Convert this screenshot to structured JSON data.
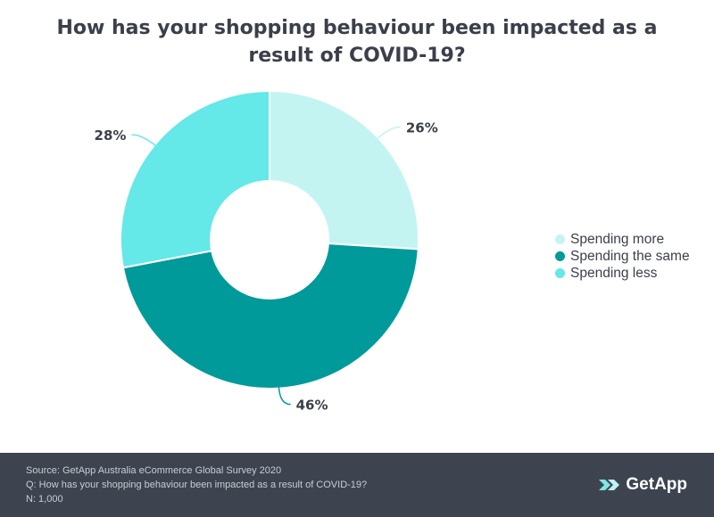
{
  "chart_data": {
    "type": "pie",
    "title": "How has your shopping behaviour been impacted as a result of COVID-19?",
    "categories": [
      "Spending more",
      "Spending the same",
      "Spending less"
    ],
    "values": [
      26,
      46,
      28
    ],
    "value_labels": [
      "26%",
      "46%",
      "28%"
    ],
    "colors": [
      "#c3f4f2",
      "#009a9a",
      "#64e8e8"
    ],
    "donut": true,
    "legend_position": "right"
  },
  "footer": {
    "source": "Source: GetApp Australia eCommerce Global Survey 2020",
    "question": "Q: How has your shopping behaviour been impacted as a result of COVID-19?",
    "sample": "N: 1,000",
    "logo_text": "GetApp",
    "logo_icon": "getapp-chevrons-icon",
    "background": "#3d4450"
  }
}
